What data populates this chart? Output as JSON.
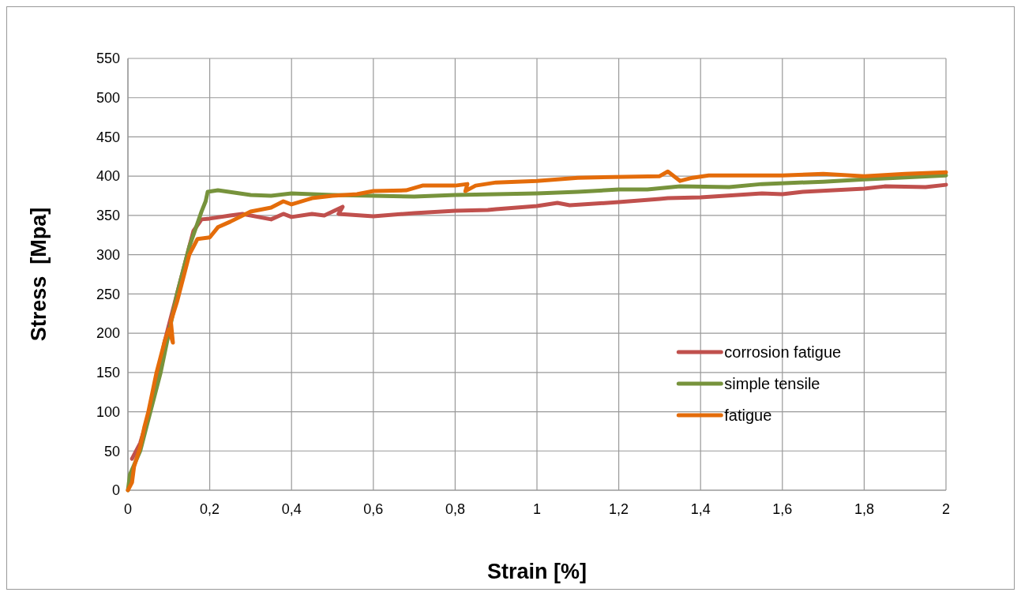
{
  "chart_data": {
    "type": "line",
    "xlabel": "Strain [%]",
    "ylabel": "Stress  [Mpa]",
    "xlim": [
      0,
      2
    ],
    "ylim": [
      0,
      550
    ],
    "xticks": [
      0,
      {
        "value": 0.2,
        "label": "0,2"
      },
      {
        "value": 0.4,
        "label": "0,4"
      },
      {
        "value": 0.6,
        "label": "0,6"
      },
      {
        "value": 0.8,
        "label": "0,8"
      },
      1,
      {
        "value": 1.2,
        "label": "1,2"
      },
      {
        "value": 1.4,
        "label": "1,4"
      },
      {
        "value": 1.6,
        "label": "1,6"
      },
      {
        "value": 1.8,
        "label": "1,8"
      },
      2
    ],
    "yticks": [
      0,
      50,
      100,
      150,
      200,
      250,
      300,
      350,
      400,
      450,
      500,
      550
    ],
    "grid": true,
    "legend": "right",
    "marker": "none",
    "line_style": "solid",
    "series": [
      {
        "name": "corrosion fatigue",
        "color": "#c0504d",
        "x": [
          0.01,
          0.03,
          0.05,
          0.07,
          0.09,
          0.11,
          0.13,
          0.15,
          0.16,
          0.18,
          0.2,
          0.25,
          0.28,
          0.35,
          0.38,
          0.4,
          0.45,
          0.48,
          0.525,
          0.515,
          0.6,
          0.7,
          0.8,
          0.88,
          0.9,
          1.0,
          1.05,
          1.08,
          1.2,
          1.3,
          1.32,
          1.4,
          1.55,
          1.6,
          1.65,
          1.8,
          1.85,
          1.95,
          2.0
        ],
        "values": [
          40,
          60,
          95,
          140,
          190,
          230,
          270,
          310,
          330,
          345,
          346,
          350,
          352,
          345,
          352,
          348,
          352,
          350,
          361,
          352,
          349,
          353,
          356,
          357,
          358,
          362,
          366,
          363,
          367,
          371,
          372,
          373,
          378,
          377,
          380,
          384,
          387,
          386,
          389
        ]
      },
      {
        "name": "simple tensile",
        "color": "#77933c",
        "x": [
          0,
          0.005,
          0.03,
          0.05,
          0.08,
          0.1,
          0.12,
          0.15,
          0.17,
          0.18,
          0.19,
          0.195,
          0.22,
          0.3,
          0.35,
          0.4,
          0.5,
          0.6,
          0.7,
          0.8,
          0.9,
          1.0,
          1.1,
          1.2,
          1.27,
          1.35,
          1.47,
          1.55,
          1.7,
          1.8,
          2.0
        ],
        "values": [
          0,
          20,
          50,
          90,
          150,
          200,
          250,
          310,
          340,
          355,
          368,
          380,
          382,
          376,
          375,
          378,
          376,
          375,
          374,
          376,
          377,
          378,
          380,
          383,
          383,
          387,
          386,
          390,
          393,
          396,
          401
        ]
      },
      {
        "name": "fatigue",
        "color": "#e46c0a",
        "x": [
          0,
          0.01,
          0.015,
          0.03,
          0.04,
          0.05,
          0.07,
          0.09,
          0.1,
          0.11,
          0.105,
          0.12,
          0.14,
          0.15,
          0.17,
          0.2,
          0.22,
          0.25,
          0.3,
          0.35,
          0.38,
          0.4,
          0.45,
          0.5,
          0.56,
          0.6,
          0.68,
          0.72,
          0.8,
          0.83,
          0.825,
          0.85,
          0.9,
          1.0,
          1.1,
          1.3,
          1.32,
          1.35,
          1.38,
          1.42,
          1.6,
          1.7,
          1.8,
          1.9,
          2.0
        ],
        "values": [
          0,
          10,
          30,
          55,
          80,
          100,
          150,
          190,
          205,
          188,
          215,
          240,
          280,
          300,
          320,
          322,
          335,
          342,
          355,
          360,
          368,
          364,
          372,
          375,
          377,
          381,
          382,
          388,
          388,
          390,
          381,
          388,
          392,
          394,
          398,
          400,
          406,
          394,
          398,
          401,
          401,
          403,
          400,
          403,
          405
        ]
      }
    ]
  }
}
